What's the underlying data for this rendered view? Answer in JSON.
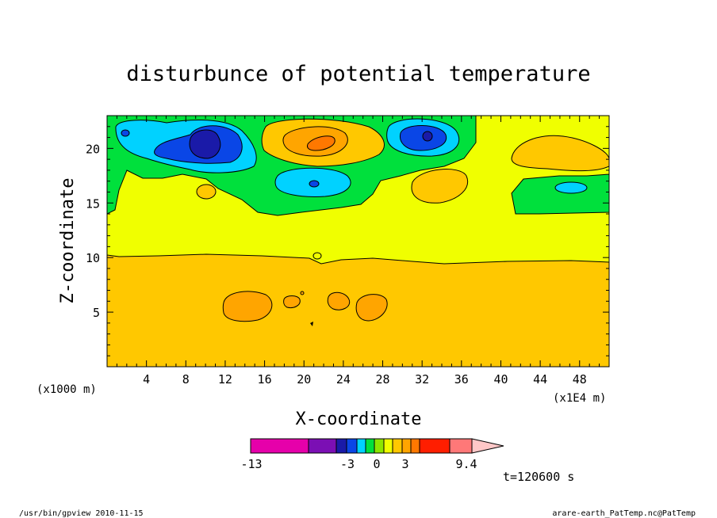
{
  "chart_data": {
    "type": "heatmap",
    "title": "disturbunce of potential temperature",
    "xlabel": "X-coordinate",
    "ylabel": "Z-coordinate",
    "x_unit": "(x1000 m)",
    "y_unit": "(x1E4 m)",
    "xlim": [
      0,
      51
    ],
    "ylim": [
      0,
      23
    ],
    "x_ticks": [
      4,
      8,
      12,
      16,
      20,
      24,
      28,
      32,
      36,
      40,
      44,
      48
    ],
    "y_ticks": [
      5,
      10,
      15,
      20
    ],
    "colorbar": {
      "tick_labels": [
        "-13",
        "-3",
        "0",
        "3",
        "9.4"
      ],
      "colors": [
        "#e600aa",
        "#7b0fb4",
        "#1a1aa8",
        "#0a46e6",
        "#00d2ff",
        "#00e03c",
        "#8ce600",
        "#f0ff00",
        "#ffc800",
        "#ffa500",
        "#ff7800",
        "#ff1e00",
        "#ff7878",
        "#ffc8c8"
      ]
    },
    "regions": [
      {
        "level": 3,
        "color": "#ffc800",
        "desc": "lower band z 0-10"
      },
      {
        "level": 0,
        "color": "#f0ff00",
        "desc": "middle band z 10-15"
      },
      {
        "level": -1,
        "color": "#00e03c",
        "desc": "upper band z 15-23"
      },
      {
        "level": -2,
        "color": "#00d2ff",
        "desc": "cold blob centered x 9, z 20"
      },
      {
        "level": -4,
        "color": "#1a1aa8",
        "desc": "cold core centered x 9.8, z 20.5"
      },
      {
        "level": -2,
        "color": "#00d2ff",
        "desc": "cold blob centered x 32.5, z 20.7"
      },
      {
        "level": 2,
        "color": "#ffa500",
        "desc": "warm blob centered x 21.5, z 20.4"
      },
      {
        "level": 3,
        "color": "#ff7800",
        "desc": "warm core centered x 21.5, z 20.5"
      },
      {
        "level": -2,
        "color": "#00d2ff",
        "desc": "cold blob centered x 21, z 16.7"
      },
      {
        "level": 1,
        "color": "#ffc800",
        "desc": "warm blob centered x 34.5, z 16.7"
      },
      {
        "level": 1,
        "color": "#ffc800",
        "desc": "warm blob centered x 45, z 20"
      },
      {
        "level": 4,
        "color": "#ffa500",
        "desc": "lower warm blobs at x 14, 19, 23.7, 27, z 5.5"
      }
    ]
  },
  "annotations": {
    "time": "t=120600 s",
    "footer_left": "/usr/bin/gpview   2010-11-15",
    "footer_right": "arare-earth_PatTemp.nc@PatTemp"
  }
}
